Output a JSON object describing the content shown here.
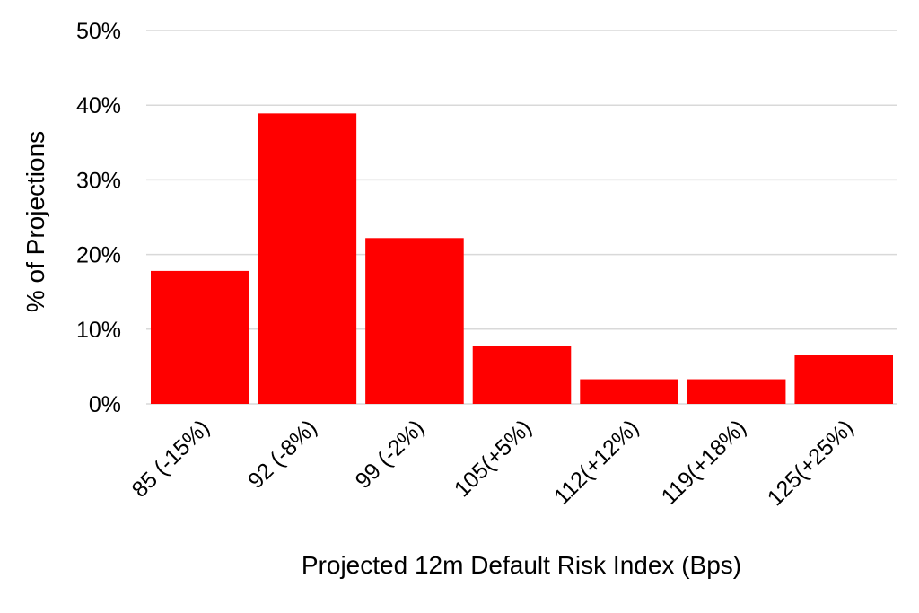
{
  "chart_data": {
    "type": "bar",
    "title": "",
    "xlabel": "Projected 12m Default Risk Index (Bps)",
    "ylabel": "% of Projections",
    "categories": [
      "85 (-15%)",
      "92 (-8%)",
      "99 (-2%)",
      "105(+5%)",
      "112(+12%)",
      "119(+18%)",
      "125(+25%)"
    ],
    "values": [
      17.8,
      38.9,
      22.2,
      7.7,
      3.3,
      3.3,
      6.6
    ],
    "ylim": [
      0,
      50
    ],
    "yticks": [
      0,
      10,
      20,
      30,
      40,
      50
    ],
    "ytick_labels": [
      "0%",
      "10%",
      "20%",
      "30%",
      "40%",
      "50%"
    ],
    "grid": true,
    "legend": "none",
    "bar_color": "#ff0000",
    "grid_color": "#d9d9d9"
  }
}
